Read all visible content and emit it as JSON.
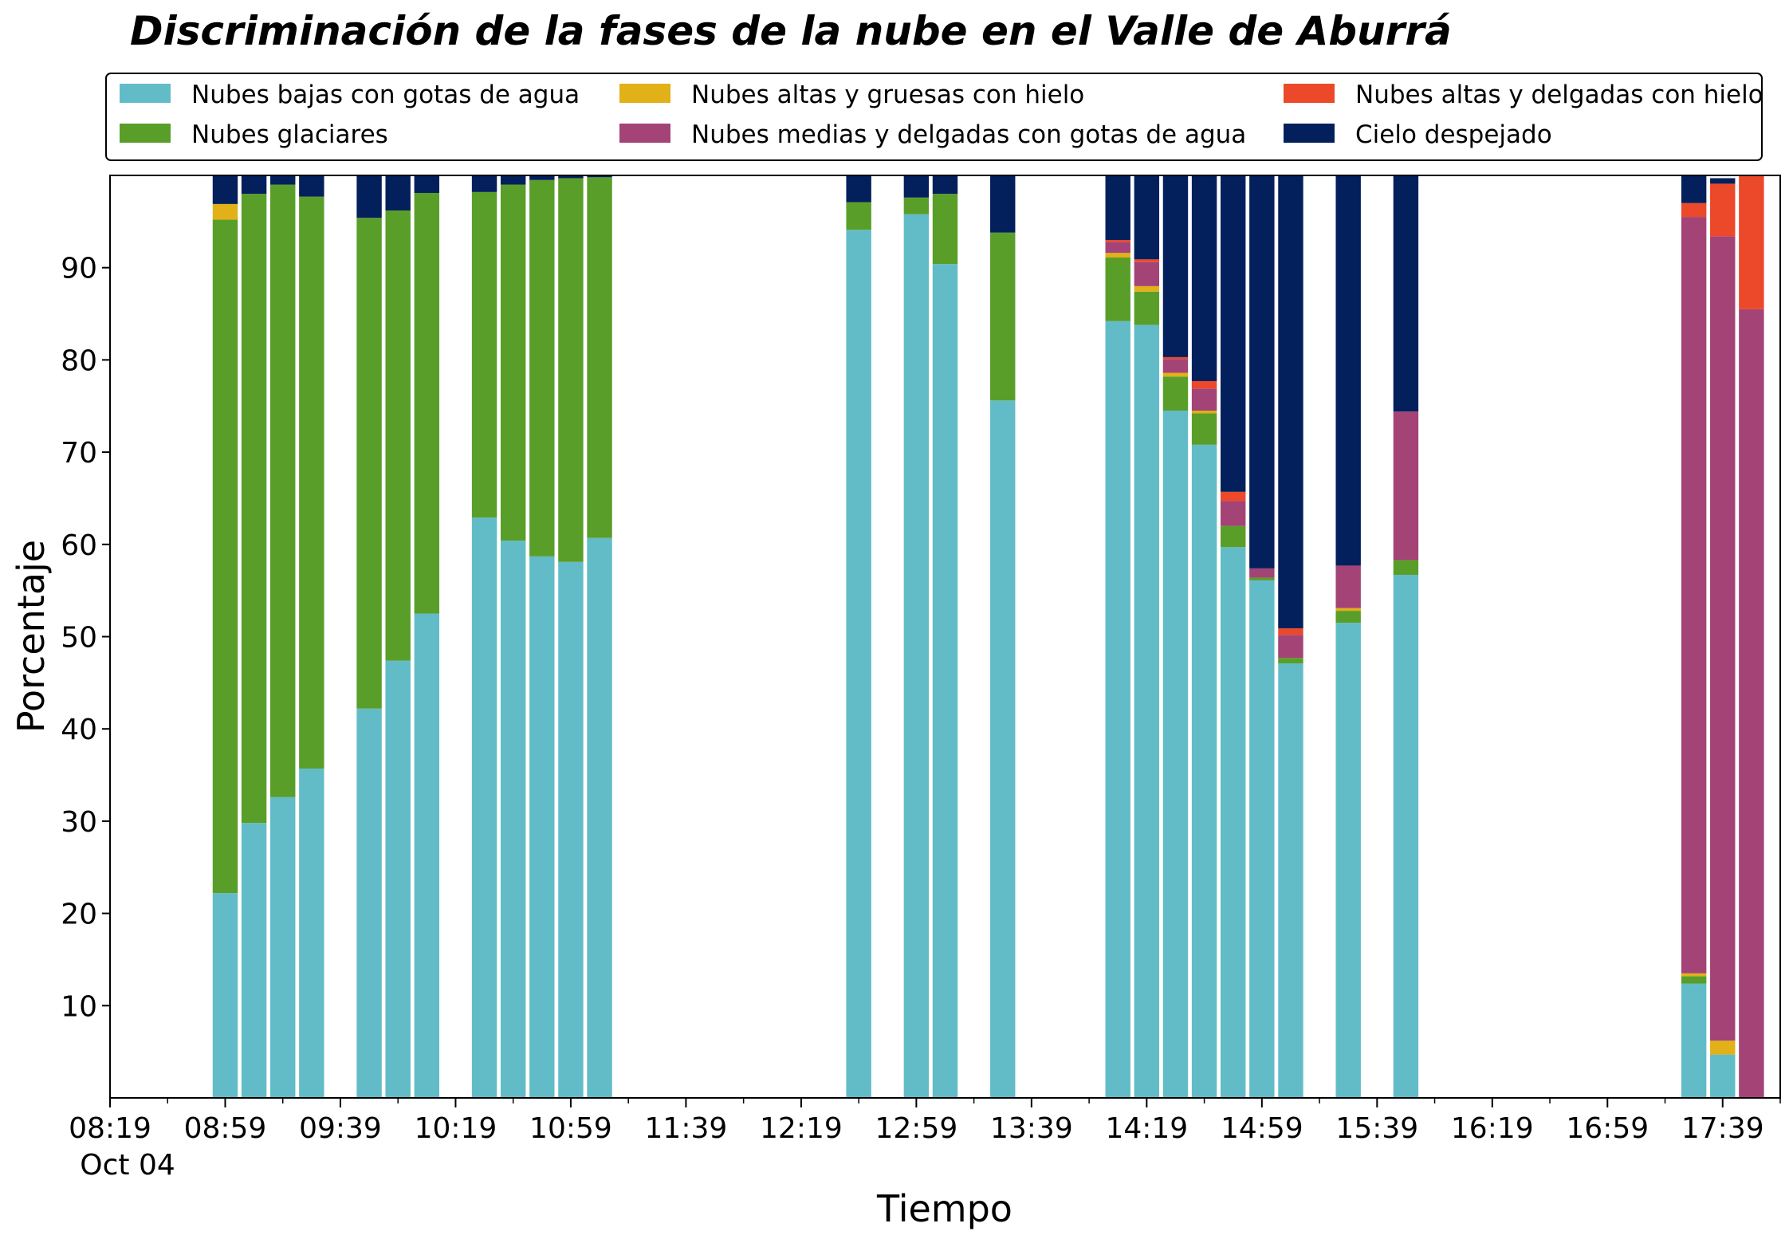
{
  "chart_data": {
    "type": "bar",
    "stacked": true,
    "title": "Discriminación de la fases de la nube en el Valle de Aburrá",
    "xlabel": "Tiempo",
    "ylabel": "Porcentaje",
    "ylim": [
      0,
      100
    ],
    "yticks": [
      10,
      20,
      30,
      40,
      50,
      60,
      70,
      80,
      90
    ],
    "x_tick_labels": [
      "08:19",
      "08:59",
      "09:39",
      "10:19",
      "10:59",
      "11:39",
      "12:19",
      "12:59",
      "13:39",
      "14:19",
      "14:59",
      "15:39",
      "16:19",
      "16:59",
      "17:39"
    ],
    "x_date_label": "Oct 04",
    "x_range": [
      "08:19",
      "17:59"
    ],
    "legend_placement": "top, above plot, 3 columns",
    "categories": [
      "08:59",
      "09:09",
      "09:19",
      "09:29",
      "09:49",
      "09:59",
      "10:09",
      "10:29",
      "10:39",
      "10:49",
      "10:59",
      "11:09",
      "12:39",
      "12:59",
      "13:09",
      "13:29",
      "14:09",
      "14:19",
      "14:29",
      "14:39",
      "14:49",
      "14:59",
      "15:09",
      "15:29",
      "15:49",
      "17:29",
      "17:39",
      "17:49"
    ],
    "series": [
      {
        "name": "Nubes bajas con gotas de agua",
        "color": "#62BCC8",
        "values": [
          22.2,
          29.8,
          32.6,
          35.7,
          42.2,
          47.4,
          52.5,
          62.9,
          60.4,
          58.7,
          58.1,
          60.7,
          94.1,
          95.8,
          90.4,
          75.6,
          84.2,
          83.8,
          74.5,
          70.8,
          59.7,
          56.1,
          47.1,
          51.5,
          56.7,
          12.4,
          4.7,
          0.0
        ]
      },
      {
        "name": "Nubes glaciares",
        "color": "#5A9E2A",
        "values": [
          73.0,
          68.2,
          66.4,
          62.0,
          53.2,
          48.8,
          45.6,
          35.3,
          38.6,
          40.8,
          41.6,
          39.1,
          3.0,
          1.8,
          7.6,
          18.2,
          6.9,
          3.6,
          3.7,
          3.4,
          2.3,
          0.3,
          0.6,
          1.3,
          1.6,
          0.8,
          0.0,
          0.0
        ]
      },
      {
        "name": "Nubes altas y gruesas con hielo",
        "color": "#E2B017",
        "values": [
          1.7,
          0.0,
          0.0,
          0.0,
          0.0,
          0.0,
          0.0,
          0.0,
          0.0,
          0.0,
          0.0,
          0.0,
          0.0,
          0.0,
          0.0,
          0.0,
          0.5,
          0.6,
          0.4,
          0.3,
          0.0,
          0.0,
          0.0,
          0.3,
          0.0,
          0.3,
          1.5,
          0.0
        ]
      },
      {
        "name": "Nubes medias y delgadas con gotas de agua",
        "color": "#A34376",
        "values": [
          0.0,
          0.0,
          0.0,
          0.0,
          0.0,
          0.0,
          0.0,
          0.0,
          0.0,
          0.0,
          0.0,
          0.0,
          0.0,
          0.0,
          0.0,
          0.0,
          1.2,
          2.6,
          1.5,
          2.4,
          2.7,
          1.0,
          2.5,
          4.6,
          16.1,
          82.0,
          87.2,
          85.5
        ]
      },
      {
        "name": "Nubes altas y delgadas con hielo",
        "color": "#EC482A",
        "values": [
          0.0,
          0.0,
          0.0,
          0.0,
          0.0,
          0.0,
          0.0,
          0.0,
          0.0,
          0.0,
          0.0,
          0.0,
          0.0,
          0.0,
          0.0,
          0.0,
          0.2,
          0.3,
          0.2,
          0.8,
          1.0,
          0.0,
          0.7,
          0.0,
          0.0,
          1.5,
          5.7,
          14.5
        ]
      },
      {
        "name": "Cielo despejado",
        "color": "#03205C",
        "values": [
          3.1,
          2.0,
          1.0,
          2.3,
          4.6,
          3.8,
          1.9,
          1.8,
          1.0,
          0.5,
          0.3,
          0.2,
          2.9,
          2.4,
          2.0,
          6.2,
          7.0,
          9.1,
          19.7,
          22.3,
          34.3,
          42.6,
          49.1,
          42.3,
          25.6,
          3.0,
          0.6,
          0.0
        ]
      }
    ]
  }
}
